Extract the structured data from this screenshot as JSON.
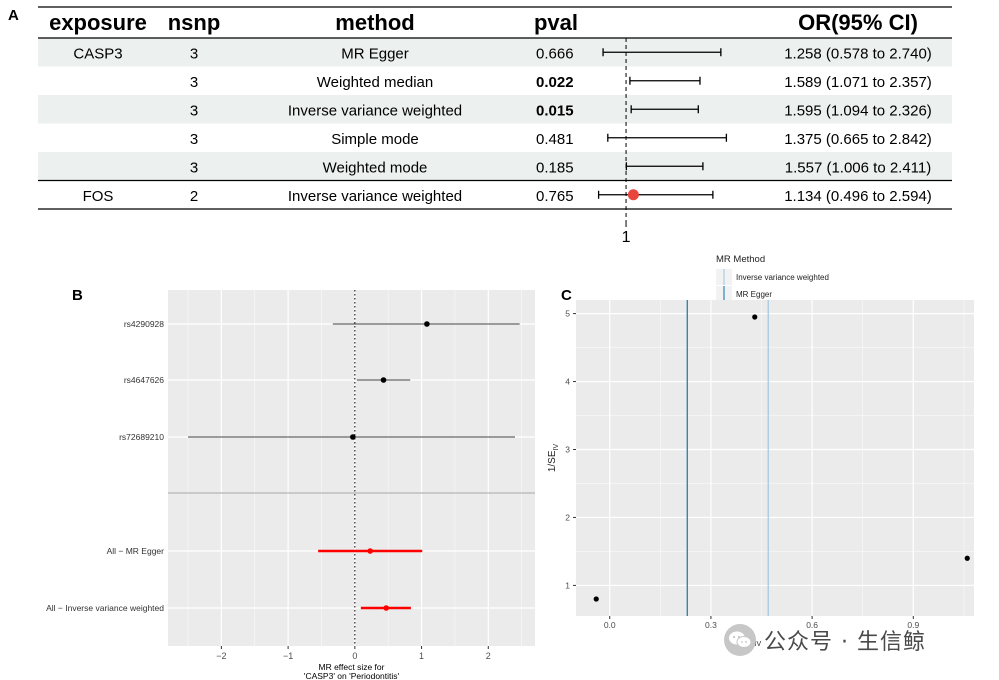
{
  "panel_labels": {
    "a": "A",
    "b": "B",
    "c": "C"
  },
  "colors": {
    "forest_point": "#e8463c",
    "row_shade": "#ecf0ee",
    "panel_bg": "#ebebeb",
    "grid": "#ffffff",
    "ivw_line": "#a9cde4",
    "egger_line": "#2f86b8",
    "red_ci": "#ff0000"
  },
  "watermark": {
    "brand_icon": "wechat-icon",
    "text": "公众号 · 生信鲸"
  },
  "chart_data": [
    {
      "type": "table",
      "subtype": "forest_plot",
      "headers": {
        "exposure": "exposure",
        "nsnp": "nsnp",
        "method": "method",
        "pval": "pval",
        "or": "OR(95% CI)"
      },
      "xlim": [
        0.43,
        3.0
      ],
      "reference_value": 1,
      "reference_label": "1",
      "rows": [
        {
          "exposure": "CASP3",
          "nsnp": "3",
          "method": "MR Egger",
          "pval": "0.666",
          "bold": false,
          "or_text": "1.258 (0.578 to 2.740)",
          "or": 1.258,
          "lo": 0.578,
          "hi": 2.74,
          "shaded": true,
          "show_point": false
        },
        {
          "exposure": "",
          "nsnp": "3",
          "method": "Weighted median",
          "pval": "0.022",
          "bold": true,
          "or_text": "1.589 (1.071 to 2.357)",
          "or": 1.589,
          "lo": 1.071,
          "hi": 2.357,
          "shaded": false,
          "show_point": false
        },
        {
          "exposure": "",
          "nsnp": "3",
          "method": "Inverse variance weighted",
          "pval": "0.015",
          "bold": true,
          "or_text": "1.595 (1.094 to 2.326)",
          "or": 1.595,
          "lo": 1.094,
          "hi": 2.326,
          "shaded": true,
          "show_point": false
        },
        {
          "exposure": "",
          "nsnp": "3",
          "method": "Simple mode",
          "pval": "0.481",
          "bold": false,
          "or_text": "1.375 (0.665 to 2.842)",
          "or": 1.375,
          "lo": 0.665,
          "hi": 2.842,
          "shaded": false,
          "show_point": false
        },
        {
          "exposure": "",
          "nsnp": "3",
          "method": "Weighted mode",
          "pval": "0.185",
          "bold": false,
          "or_text": "1.557 (1.006 to 2.411)",
          "or": 1.557,
          "lo": 1.006,
          "hi": 2.411,
          "shaded": true,
          "show_point": false
        },
        {
          "exposure": "FOS",
          "nsnp": "2",
          "method": "Inverse variance weighted",
          "pval": "0.765",
          "bold": false,
          "or_text": "1.134 (0.496 to 2.594)",
          "or": 1.134,
          "lo": 0.496,
          "hi": 2.594,
          "shaded": false,
          "show_point": true
        }
      ]
    },
    {
      "type": "scatter",
      "subtype": "forest_plot",
      "xlabel_line1": "MR effect size for",
      "xlabel_line2": "'CASP3' on 'Periodontitis'",
      "xlim": [
        -2.8,
        2.7
      ],
      "xticks": [
        -2,
        -1,
        0,
        1,
        2
      ],
      "xtick_labels": [
        "−2",
        "−1",
        "0",
        "1",
        "2"
      ],
      "reference_value": 0,
      "snps": [
        {
          "label": "rs4290928",
          "b": 1.08,
          "lo": -0.33,
          "hi": 2.47
        },
        {
          "label": "rs4647626",
          "b": 0.43,
          "lo": 0.03,
          "hi": 0.83
        },
        {
          "label": "rs72689210",
          "b": -0.03,
          "lo": -2.5,
          "hi": 2.4
        }
      ],
      "methods": [
        {
          "label": "All − MR Egger",
          "b": 0.23,
          "lo": -0.55,
          "hi": 1.01
        },
        {
          "label": "All − Inverse variance weighted",
          "b": 0.47,
          "lo": 0.09,
          "hi": 0.84
        }
      ]
    },
    {
      "type": "scatter",
      "subtype": "funnel_plot",
      "xlabel_main": "β",
      "xlabel_sub": "IV",
      "ylabel_main": "1/SE",
      "ylabel_sub": "IV",
      "xlim": [
        -0.1,
        1.08
      ],
      "ylim": [
        0.55,
        5.2
      ],
      "xticks": [
        0.0,
        0.3,
        0.6,
        0.9
      ],
      "xtick_labels": [
        "0.0",
        "0.3",
        "0.6",
        "0.9"
      ],
      "yticks": [
        1,
        2,
        3,
        4,
        5
      ],
      "ytick_labels": [
        "1",
        "2",
        "3",
        "4",
        "5"
      ],
      "points": [
        {
          "x": -0.04,
          "y": 0.8
        },
        {
          "x": 0.43,
          "y": 4.95
        },
        {
          "x": 1.06,
          "y": 1.4
        }
      ],
      "legend_title": "MR Method",
      "legend_position": "top",
      "vlines": [
        {
          "name": "Inverse variance weighted",
          "x": 0.47,
          "color": "#a9cde4"
        },
        {
          "name": "MR Egger",
          "x": 0.23,
          "color": "#2f86b8"
        }
      ]
    }
  ]
}
